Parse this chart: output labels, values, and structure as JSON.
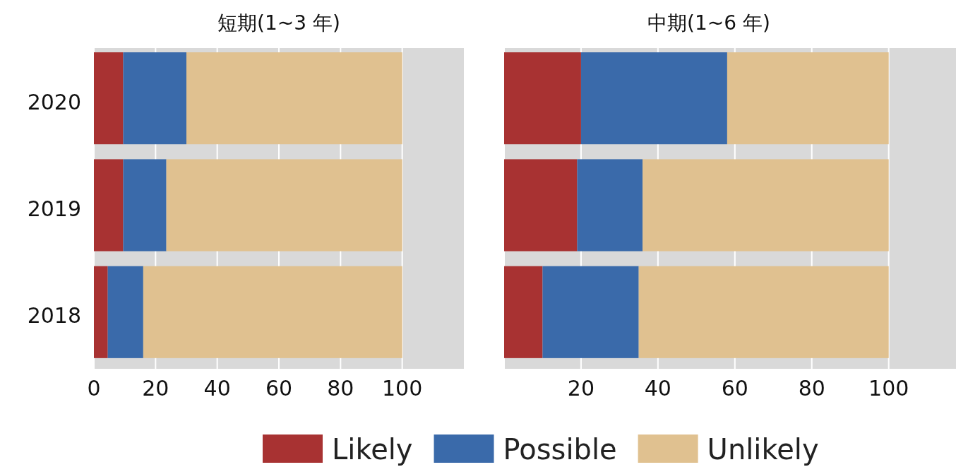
{
  "chart_data": [
    {
      "type": "bar",
      "orientation": "horizontal",
      "stacked": true,
      "title": "短期(1~3 年)",
      "categories": [
        "2020",
        "2019",
        "2018"
      ],
      "xlim": [
        0,
        120
      ],
      "xticks": [
        0,
        20,
        40,
        60,
        80,
        100
      ],
      "grid": "x",
      "legend": "bottom",
      "series": [
        {
          "name": "Likely",
          "color": "#a83232",
          "values": [
            9.5,
            9.5,
            4.5
          ]
        },
        {
          "name": "Possible",
          "color": "#3a6aaa",
          "values": [
            20.5,
            14,
            11.5
          ]
        },
        {
          "name": "Unlikely",
          "color": "#e0c190",
          "values": [
            70,
            76.5,
            84
          ]
        }
      ]
    },
    {
      "type": "bar",
      "orientation": "horizontal",
      "stacked": true,
      "title": "中期(1~6 年)",
      "categories": [
        "2020",
        "2019",
        "2018"
      ],
      "xlim": [
        0,
        117.5
      ],
      "xticks": [
        {
          "value": 0,
          "label": null
        },
        20,
        40,
        60,
        80,
        100
      ],
      "grid": "x",
      "tick_labels": "x",
      "series": [
        {
          "color": "#a83232",
          "values": [
            20,
            19,
            10
          ]
        },
        {
          "color": "#3a6aaa",
          "values": [
            38,
            17,
            25
          ]
        },
        {
          "color": "#e0c190",
          "values": [
            42,
            64,
            65
          ]
        }
      ]
    }
  ]
}
